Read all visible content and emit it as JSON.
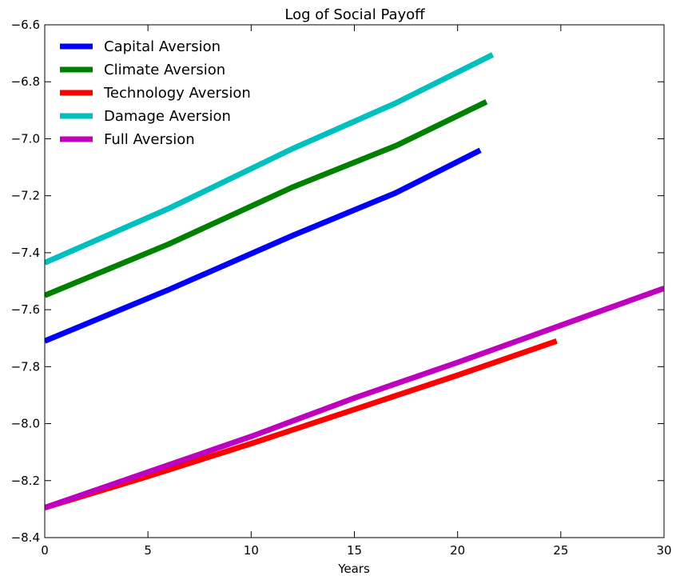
{
  "chart_data": {
    "type": "line",
    "title": "Log of Social Payoff",
    "xlabel": "Years",
    "ylabel": "",
    "xlim": [
      0,
      30
    ],
    "ylim": [
      -8.4,
      -6.6
    ],
    "x_ticks": [
      "0",
      "5",
      "10",
      "15",
      "20",
      "25",
      "30"
    ],
    "y_ticks": [
      "−6.6",
      "−6.8",
      "−7.0",
      "−7.2",
      "−7.4",
      "−7.6",
      "−7.8",
      "−8.0",
      "−8.2",
      "−8.4"
    ],
    "grid": false,
    "legend_position": "top-left",
    "series": [
      {
        "name": "Capital Aversion",
        "color": "#0000ff",
        "x": [
          0,
          6,
          12,
          17,
          21.1
        ],
        "y": [
          -7.71,
          -7.53,
          -7.34,
          -7.19,
          -7.04
        ]
      },
      {
        "name": "Climate Aversion",
        "color": "#008000",
        "x": [
          0,
          6,
          12,
          17,
          21.4
        ],
        "y": [
          -7.55,
          -7.37,
          -7.17,
          -7.025,
          -6.87
        ]
      },
      {
        "name": "Technology Aversion",
        "color": "#ff0000",
        "x": [
          0,
          5,
          10,
          15,
          20,
          24.8
        ],
        "y": [
          -8.295,
          -8.185,
          -8.07,
          -7.95,
          -7.83,
          -7.71
        ]
      },
      {
        "name": "Damage Aversion",
        "color": "#00bfbf",
        "x": [
          0,
          6,
          12,
          17,
          21.7
        ],
        "y": [
          -7.435,
          -7.245,
          -7.035,
          -6.875,
          -6.705
        ]
      },
      {
        "name": "Full Aversion",
        "color": "#bf00bf",
        "x": [
          0,
          5,
          10,
          15,
          20,
          25,
          30
        ],
        "y": [
          -8.295,
          -8.17,
          -8.045,
          -7.91,
          -7.785,
          -7.655,
          -7.525
        ]
      }
    ]
  }
}
